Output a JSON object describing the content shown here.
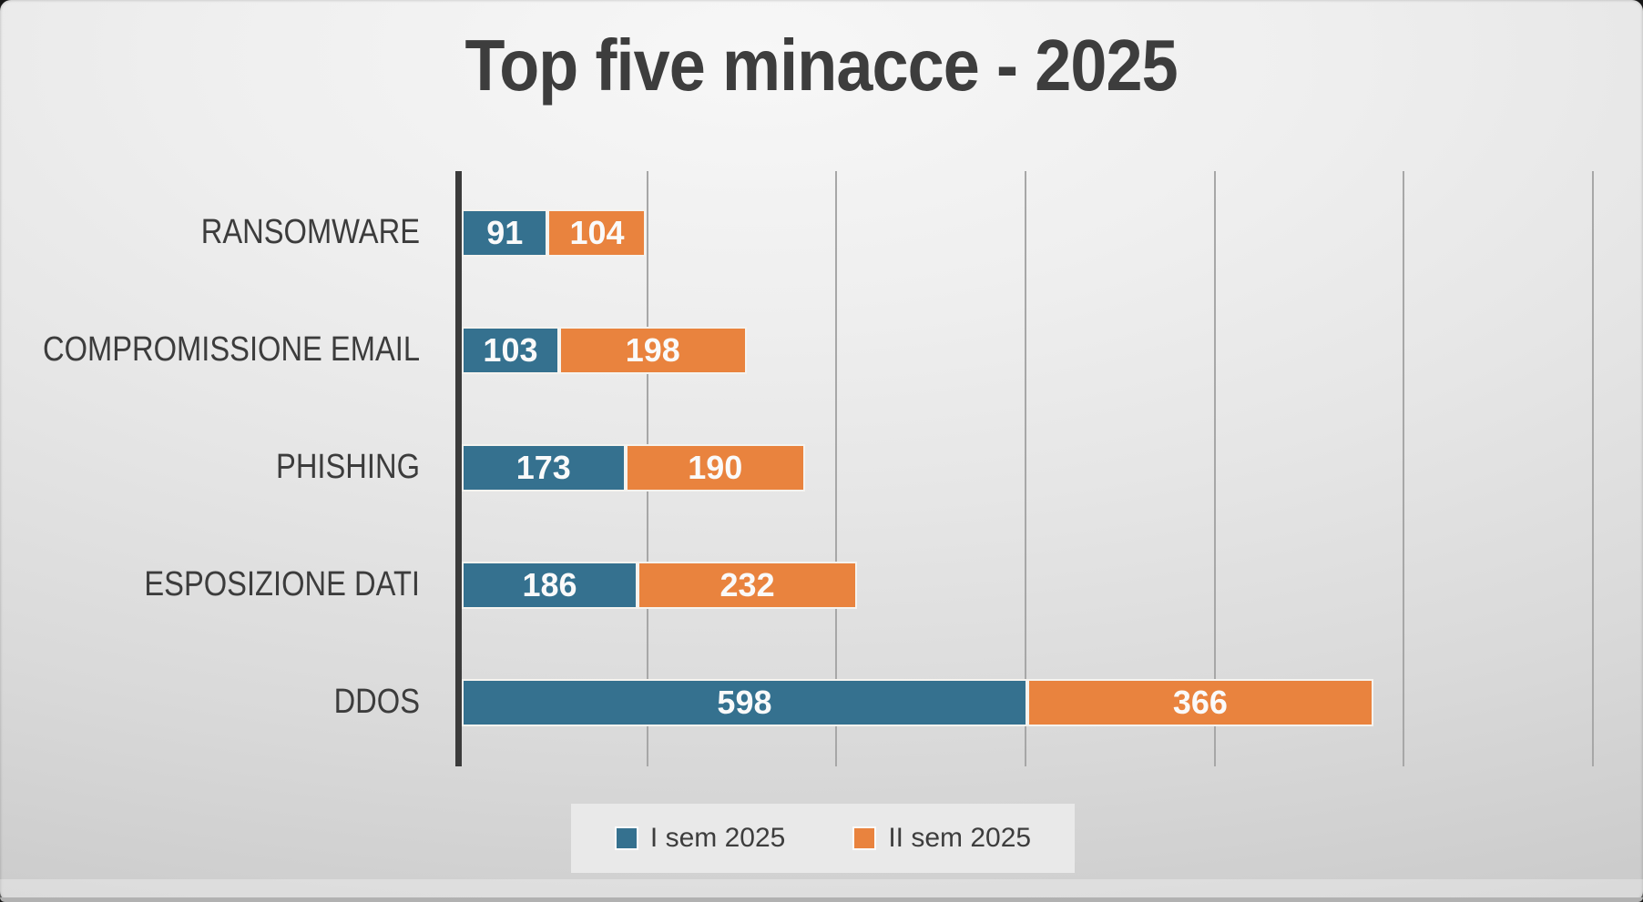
{
  "title": "Top five minacce - 2025",
  "colors": {
    "series1": "#35718f",
    "series2": "#e9833e",
    "title_text": "#3d3d3d",
    "category_text": "#3c3c3c",
    "value_text": "#fafafa",
    "axis_line": "#3b3b3b",
    "gridline": "#a7a7a7",
    "legend_background": "#e9e9e9",
    "background_light": "#f7f7f7",
    "background_dark": "#c5c5c5"
  },
  "chart_data": {
    "type": "bar",
    "orientation": "horizontal",
    "stacked": true,
    "title": "Top five minacce - 2025",
    "categories": [
      "RANSOMWARE",
      "COMPROMISSIONE EMAIL",
      "PHISHING",
      "ESPOSIZIONE DATI",
      "DDOS"
    ],
    "series": [
      {
        "name": "I sem 2025",
        "color": "#35718f",
        "values": [
          91,
          103,
          173,
          186,
          598
        ]
      },
      {
        "name": "II sem 2025",
        "color": "#e9833e",
        "values": [
          104,
          198,
          190,
          232,
          366
        ]
      }
    ],
    "totals": [
      195,
      301,
      363,
      418,
      964
    ],
    "xlabel": "",
    "ylabel": "",
    "xlim": [
      0,
      1200
    ],
    "gridline_step": 200,
    "grid": true,
    "legend_position": "bottom",
    "value_labels": "inside-white"
  }
}
